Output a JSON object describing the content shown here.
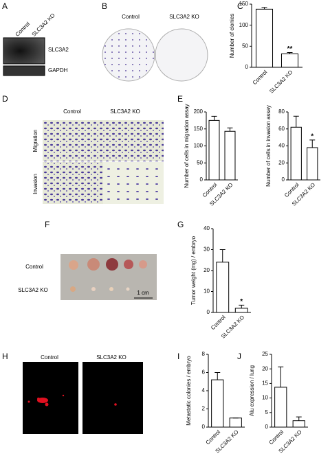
{
  "panels": {
    "letters": [
      "A",
      "B",
      "C",
      "D",
      "E",
      "F",
      "G",
      "H",
      "I",
      "J"
    ],
    "blot": {
      "lanes": [
        "Control",
        "SLC3A2 KO"
      ],
      "bands": [
        "SLC3A2",
        "GAPDH"
      ]
    },
    "colony": {
      "labels": [
        "Control",
        "SLC3A2 KO"
      ]
    },
    "transwell": {
      "columns": [
        "Control",
        "SLC3A2 KO"
      ],
      "rows": [
        "Migration",
        "Invasion"
      ]
    },
    "tumor": {
      "rows": [
        "Control",
        "SLC3A2 KO"
      ],
      "scale": "1 cm"
    },
    "fluorescence": {
      "labels": [
        "Control",
        "SLC3A2 KO"
      ]
    }
  },
  "chart_data": [
    {
      "type": "bar",
      "y_label": "Number of clonies",
      "categories": [
        "Control",
        "SLC3A2 KO"
      ],
      "values": [
        138,
        32
      ],
      "errors": [
        4,
        3
      ],
      "significance": [
        null,
        "**"
      ],
      "ylim": [
        0,
        150
      ],
      "yticks": [
        0,
        50,
        100,
        150
      ],
      "color": "#ffffff"
    },
    {
      "type": "bar",
      "y_label": "Number of cells in migration assay",
      "categories": [
        "Control",
        "SLC3A2 KO"
      ],
      "values": [
        175,
        143
      ],
      "errors": [
        12,
        10
      ],
      "significance": [
        null,
        null
      ],
      "ylim": [
        0,
        200
      ],
      "yticks": [
        0,
        50,
        100,
        150,
        200
      ],
      "color": "#ffffff"
    },
    {
      "type": "bar",
      "y_label": "Number of cells in invasion assay",
      "categories": [
        "Control",
        "SLC3A2 KO"
      ],
      "values": [
        62,
        38
      ],
      "errors": [
        13,
        9
      ],
      "significance": [
        null,
        "*"
      ],
      "ylim": [
        0,
        80
      ],
      "yticks": [
        0,
        20,
        40,
        60,
        80
      ],
      "color": "#ffffff"
    },
    {
      "type": "bar",
      "y_label": "Tumor weight (mg) / embryo",
      "categories": [
        "Control",
        "SLC3A2 KO"
      ],
      "values": [
        24,
        2
      ],
      "errors": [
        6,
        1.5
      ],
      "significance": [
        null,
        "*"
      ],
      "ylim": [
        0,
        40
      ],
      "yticks": [
        0,
        10,
        20,
        30,
        40
      ],
      "color": "#ffffff"
    },
    {
      "type": "bar",
      "y_label": "Metastatic colonies / embryo",
      "categories": [
        "Control",
        "SLC3A2 KO"
      ],
      "values": [
        5.2,
        1
      ],
      "errors": [
        0.8,
        0
      ],
      "significance": [
        null,
        null
      ],
      "ylim": [
        0,
        8
      ],
      "yticks": [
        0,
        2,
        4,
        6,
        8
      ],
      "color": "#ffffff"
    },
    {
      "type": "bar",
      "y_label": "Alu expression / lung",
      "categories": [
        "Control",
        "SLC3A2 KO"
      ],
      "values": [
        13.7,
        2.2
      ],
      "errors": [
        7,
        1.3
      ],
      "significance": [
        null,
        null
      ],
      "ylim": [
        0,
        25
      ],
      "yticks": [
        0,
        5,
        10,
        15,
        20,
        25
      ],
      "color": "#ffffff"
    }
  ]
}
